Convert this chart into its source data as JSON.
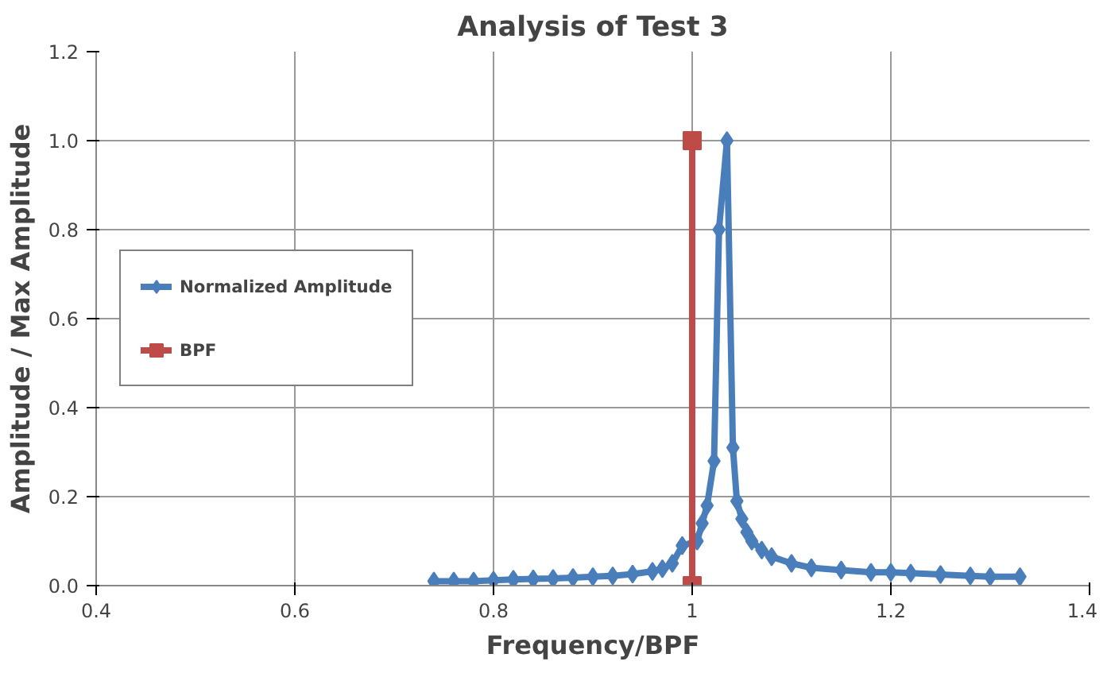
{
  "chart_data": {
    "type": "line",
    "title": "Analysis of Test 3",
    "xlabel": "Frequency/BPF",
    "ylabel": "Amplitude / Max Amplitude",
    "xlim": [
      0.4,
      1.4
    ],
    "xticks": [
      {
        "value": 0.4,
        "label": "0.4"
      },
      {
        "value": 0.6,
        "label": "0.6"
      },
      {
        "value": 0.8,
        "label": "0.8"
      },
      {
        "value": 1.0,
        "label": "1"
      },
      {
        "value": 1.2,
        "label": "1.2"
      },
      {
        "value": 1.4,
        "label": "1.4"
      }
    ],
    "ylim": [
      0,
      1.2
    ],
    "yticks": [
      {
        "value": 0,
        "label": "0.0"
      },
      {
        "value": 0.2,
        "label": "0.2"
      },
      {
        "value": 0.4,
        "label": "0.4"
      },
      {
        "value": 0.6,
        "label": "0.6"
      },
      {
        "value": 0.8,
        "label": "0.8"
      },
      {
        "value": 1.0,
        "label": "1.0"
      },
      {
        "value": 1.2,
        "label": "1.2"
      }
    ],
    "grid": true,
    "legend": "left",
    "line_style": "solid",
    "series": [
      {
        "name": "Normalized Amplitude",
        "color": "#4a7ebb",
        "marker": "diamond",
        "x": [
          0.74,
          0.76,
          0.78,
          0.8,
          0.82,
          0.84,
          0.86,
          0.88,
          0.9,
          0.92,
          0.94,
          0.96,
          0.97,
          0.98,
          0.99,
          1.005,
          1.01,
          1.015,
          1.022,
          1.027,
          1.035,
          1.041,
          1.045,
          1.05,
          1.055,
          1.06,
          1.07,
          1.08,
          1.1,
          1.12,
          1.15,
          1.18,
          1.2,
          1.22,
          1.25,
          1.28,
          1.3,
          1.33
        ],
        "values": [
          0.01,
          0.01,
          0.01,
          0.012,
          0.014,
          0.015,
          0.016,
          0.018,
          0.02,
          0.022,
          0.026,
          0.032,
          0.038,
          0.05,
          0.09,
          0.1,
          0.14,
          0.18,
          0.28,
          0.8,
          1.0,
          0.31,
          0.19,
          0.15,
          0.12,
          0.1,
          0.08,
          0.065,
          0.05,
          0.04,
          0.035,
          0.03,
          0.03,
          0.028,
          0.025,
          0.022,
          0.02,
          0.02
        ]
      },
      {
        "name": "BPF",
        "color": "#be4b48",
        "marker": "square",
        "x": [
          1.0,
          1.0
        ],
        "values": [
          0,
          1.0
        ]
      }
    ]
  }
}
